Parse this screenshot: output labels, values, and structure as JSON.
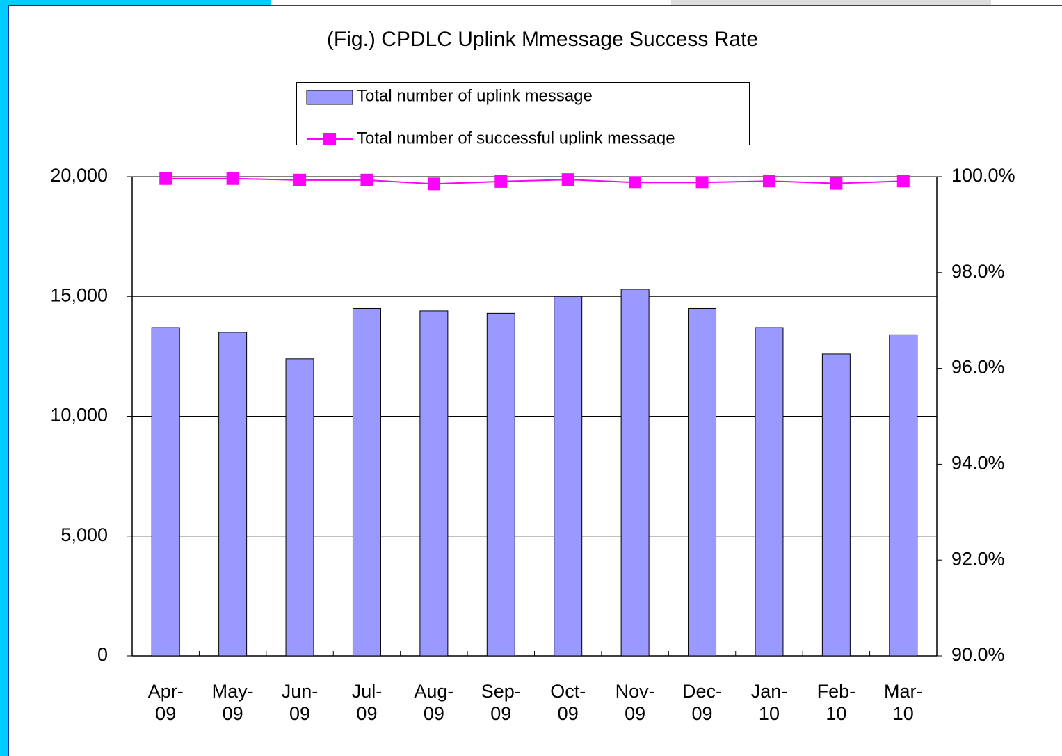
{
  "chart_data": {
    "type": "bar_line",
    "title": "(Fig.) CPDLC Uplink Mmessage Success Rate",
    "categories": [
      "Apr- 09",
      "May- 09",
      "Jun- 09",
      "Jul- 09",
      "Aug- 09",
      "Sep- 09",
      "Oct- 09",
      "Nov- 09",
      "Dec- 09",
      "Jan- 10",
      "Feb- 10",
      "Mar- 10"
    ],
    "series": [
      {
        "name": "Total number of uplink message",
        "type": "bar",
        "color": "#9999ff",
        "values": [
          13700,
          13500,
          12400,
          14500,
          14400,
          14300,
          15000,
          15300,
          14500,
          13700,
          12600,
          13400
        ]
      },
      {
        "name": "Total number of successful uplink message",
        "type": "line",
        "axis": "y2",
        "color": "#ff00ff",
        "values": [
          99.96,
          99.96,
          99.93,
          99.93,
          99.85,
          99.9,
          99.94,
          99.88,
          99.88,
          99.91,
          99.86,
          99.91
        ]
      }
    ],
    "ylim": [
      0,
      20000
    ],
    "yticks": [
      0,
      {
        "value": 5000,
        "label": "5,000"
      },
      {
        "value": 10000,
        "label": "10,000"
      },
      {
        "value": 15000,
        "label": "15,000"
      },
      {
        "value": 20000,
        "label": "20,000"
      }
    ],
    "y2lim": [
      90,
      100
    ],
    "y2ticks": [
      {
        "value": 90,
        "label": "90.0%"
      },
      {
        "value": 92,
        "label": "92.0%"
      },
      {
        "value": 94,
        "label": "94.0%"
      },
      {
        "value": 96,
        "label": "96.0%"
      },
      {
        "value": 98,
        "label": "98.0%"
      },
      {
        "value": 100,
        "label": "100.0%"
      }
    ],
    "grid": true
  }
}
